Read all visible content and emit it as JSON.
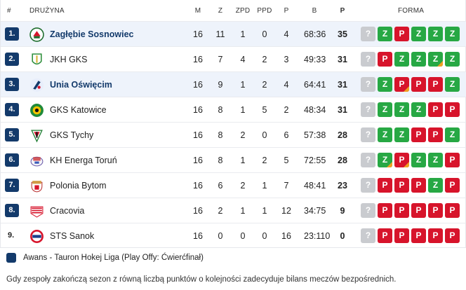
{
  "header": {
    "rank": "#",
    "team": "DRUŻYNA",
    "m": "M",
    "z": "Z",
    "zpd": "ZPD",
    "ppd": "PPD",
    "p": "P",
    "b": "B",
    "pts": "P",
    "form": "FORMA"
  },
  "colors": {
    "brand": "#133a6b",
    "win": "#27a844",
    "loss": "#d7142b",
    "unknown": "#c9cbcf",
    "overtime_marker": "#f0a020",
    "highlight_row": "#eef3fb"
  },
  "rows": [
    {
      "rank": "1.",
      "qualified": true,
      "highlight": true,
      "bold": true,
      "team": "Zagłębie Sosnowiec",
      "logo": "zaglebie-logo",
      "m": "16",
      "z": "11",
      "zpd": "1",
      "ppd": "0",
      "p": "4",
      "b": "68:36",
      "pts": "35",
      "form": [
        {
          "r": "?",
          "ot": false
        },
        {
          "r": "Z",
          "ot": false
        },
        {
          "r": "P",
          "ot": false
        },
        {
          "r": "Z",
          "ot": false
        },
        {
          "r": "Z",
          "ot": false
        },
        {
          "r": "Z",
          "ot": false
        }
      ]
    },
    {
      "rank": "2.",
      "qualified": true,
      "highlight": false,
      "bold": false,
      "team": "JKH GKS",
      "logo": "jkh-logo",
      "m": "16",
      "z": "7",
      "zpd": "4",
      "ppd": "2",
      "p": "3",
      "b": "49:33",
      "pts": "31",
      "form": [
        {
          "r": "?",
          "ot": false
        },
        {
          "r": "P",
          "ot": false
        },
        {
          "r": "Z",
          "ot": false
        },
        {
          "r": "Z",
          "ot": false
        },
        {
          "r": "Z",
          "ot": true
        },
        {
          "r": "Z",
          "ot": false
        }
      ]
    },
    {
      "rank": "3.",
      "qualified": true,
      "highlight": true,
      "bold": true,
      "team": "Unia Oświęcim",
      "logo": "unia-logo",
      "m": "16",
      "z": "9",
      "zpd": "1",
      "ppd": "2",
      "p": "4",
      "b": "64:41",
      "pts": "31",
      "form": [
        {
          "r": "?",
          "ot": false
        },
        {
          "r": "Z",
          "ot": false
        },
        {
          "r": "P",
          "ot": true
        },
        {
          "r": "P",
          "ot": false
        },
        {
          "r": "P",
          "ot": false
        },
        {
          "r": "Z",
          "ot": false
        }
      ]
    },
    {
      "rank": "4.",
      "qualified": true,
      "highlight": false,
      "bold": false,
      "team": "GKS Katowice",
      "logo": "gks-katowice-logo",
      "m": "16",
      "z": "8",
      "zpd": "1",
      "ppd": "5",
      "p": "2",
      "b": "48:34",
      "pts": "31",
      "form": [
        {
          "r": "?",
          "ot": false
        },
        {
          "r": "Z",
          "ot": false
        },
        {
          "r": "Z",
          "ot": false
        },
        {
          "r": "Z",
          "ot": false
        },
        {
          "r": "P",
          "ot": false
        },
        {
          "r": "P",
          "ot": false
        }
      ]
    },
    {
      "rank": "5.",
      "qualified": true,
      "highlight": false,
      "bold": false,
      "team": "GKS Tychy",
      "logo": "gks-tychy-logo",
      "m": "16",
      "z": "8",
      "zpd": "2",
      "ppd": "0",
      "p": "6",
      "b": "57:38",
      "pts": "28",
      "form": [
        {
          "r": "?",
          "ot": false
        },
        {
          "r": "Z",
          "ot": false
        },
        {
          "r": "Z",
          "ot": false
        },
        {
          "r": "P",
          "ot": false
        },
        {
          "r": "P",
          "ot": false
        },
        {
          "r": "Z",
          "ot": false
        }
      ]
    },
    {
      "rank": "6.",
      "qualified": true,
      "highlight": false,
      "bold": false,
      "team": "KH Energa Toruń",
      "logo": "torun-logo",
      "m": "16",
      "z": "8",
      "zpd": "1",
      "ppd": "2",
      "p": "5",
      "b": "72:55",
      "pts": "28",
      "form": [
        {
          "r": "?",
          "ot": false
        },
        {
          "r": "Z",
          "ot": true
        },
        {
          "r": "P",
          "ot": true
        },
        {
          "r": "Z",
          "ot": false
        },
        {
          "r": "Z",
          "ot": false
        },
        {
          "r": "P",
          "ot": false
        }
      ]
    },
    {
      "rank": "7.",
      "qualified": true,
      "highlight": false,
      "bold": false,
      "team": "Polonia Bytom",
      "logo": "polonia-logo",
      "m": "16",
      "z": "6",
      "zpd": "2",
      "ppd": "1",
      "p": "7",
      "b": "48:41",
      "pts": "23",
      "form": [
        {
          "r": "?",
          "ot": false
        },
        {
          "r": "P",
          "ot": false
        },
        {
          "r": "P",
          "ot": false
        },
        {
          "r": "P",
          "ot": false
        },
        {
          "r": "Z",
          "ot": false
        },
        {
          "r": "P",
          "ot": false
        }
      ]
    },
    {
      "rank": "8.",
      "qualified": true,
      "highlight": false,
      "bold": false,
      "team": "Cracovia",
      "logo": "cracovia-logo",
      "m": "16",
      "z": "2",
      "zpd": "1",
      "ppd": "1",
      "p": "12",
      "b": "34:75",
      "pts": "9",
      "form": [
        {
          "r": "?",
          "ot": false
        },
        {
          "r": "P",
          "ot": false
        },
        {
          "r": "P",
          "ot": false
        },
        {
          "r": "P",
          "ot": false
        },
        {
          "r": "P",
          "ot": false
        },
        {
          "r": "P",
          "ot": false
        }
      ]
    },
    {
      "rank": "9.",
      "qualified": false,
      "highlight": false,
      "bold": false,
      "team": "STS Sanok",
      "logo": "sts-sanok-logo",
      "m": "16",
      "z": "0",
      "zpd": "0",
      "ppd": "0",
      "p": "16",
      "b": "23:110",
      "pts": "0",
      "form": [
        {
          "r": "?",
          "ot": false
        },
        {
          "r": "P",
          "ot": false
        },
        {
          "r": "P",
          "ot": false
        },
        {
          "r": "P",
          "ot": false
        },
        {
          "r": "P",
          "ot": false
        },
        {
          "r": "P",
          "ot": false
        }
      ]
    }
  ],
  "legend": {
    "label": "Awans - Tauron Hokej Liga (Play Offy: Ćwierćfinał)"
  },
  "footnote": "Gdy zespoły zakończą sezon z równą liczbą punktów o kolejności zadecyduje bilans meczów bezpośrednich."
}
